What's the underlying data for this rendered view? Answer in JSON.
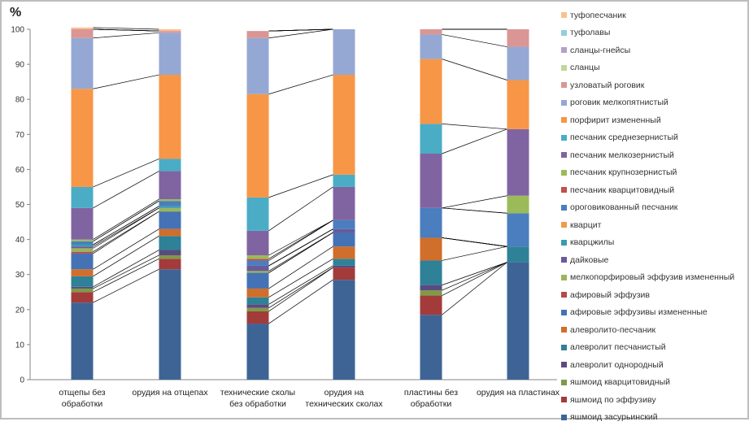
{
  "chart_data": {
    "type": "bar",
    "stacked": true,
    "percent": true,
    "title": "",
    "ylabel": "%",
    "xlabel": "",
    "ylim": [
      0,
      100
    ],
    "yticks": [
      0,
      10,
      20,
      30,
      40,
      50,
      60,
      70,
      80,
      90,
      100
    ],
    "grid": false,
    "legend_position": "right",
    "categories": [
      [
        "отщепы без",
        "обработки"
      ],
      [
        "орудия на отщепах"
      ],
      [
        "технические сколы",
        "без обработки"
      ],
      [
        "орудия на",
        "технических сколах"
      ],
      [
        "пластины без",
        "обработки"
      ],
      [
        "орудия на пластинах"
      ]
    ],
    "series": [
      {
        "name": "яшмоид засурьинский",
        "color": "#3E6496",
        "values": [
          22,
          31.5,
          16,
          28.5,
          18.5,
          33.5
        ]
      },
      {
        "name": "яшмоид по эффузиву",
        "color": "#A33B3B",
        "values": [
          3,
          3,
          3.5,
          3.5,
          5.5,
          0
        ]
      },
      {
        "name": "яшмоид кварцитовидный",
        "color": "#7F9A48",
        "values": [
          1,
          1,
          1,
          0,
          1.5,
          0
        ]
      },
      {
        "name": "алевролит однородный",
        "color": "#5B4A80",
        "values": [
          0.5,
          1.5,
          1,
          0.5,
          1.5,
          0
        ]
      },
      {
        "name": "алевролит песчанистый",
        "color": "#2E8197",
        "values": [
          3,
          4,
          2,
          2,
          7,
          4.5
        ]
      },
      {
        "name": "алевролито-песчаник",
        "color": "#D06E2B",
        "values": [
          2,
          2,
          2.5,
          3.5,
          6.5,
          0
        ]
      },
      {
        "name": "афировые эффузивы измененные",
        "color": "#4472B5",
        "values": [
          4.5,
          5,
          4.5,
          4,
          0,
          0
        ]
      },
      {
        "name": "афировый эффузив",
        "color": "#B44A4A",
        "values": [
          0.5,
          0,
          0,
          0,
          0,
          0
        ]
      },
      {
        "name": "мелкопорфировый эффузив измененный",
        "color": "#9AB55A",
        "values": [
          1,
          1,
          0.5,
          0,
          0,
          0
        ]
      },
      {
        "name": "дайковые",
        "color": "#6A5A9A",
        "values": [
          0.5,
          0,
          1.5,
          1,
          0,
          0
        ]
      },
      {
        "name": "кварцжилы",
        "color": "#3A9AAF",
        "values": [
          0.5,
          0.5,
          0,
          0,
          0,
          0
        ]
      },
      {
        "name": "кварцит",
        "color": "#F09A4A",
        "values": [
          0,
          0,
          0,
          0,
          0,
          0
        ]
      },
      {
        "name": "ороговикованный песчаник",
        "color": "#4A7EBE",
        "values": [
          1,
          1.5,
          1.5,
          2.5,
          8.5,
          9.5
        ]
      },
      {
        "name": "песчаник кварцитовидный",
        "color": "#C0504D",
        "values": [
          0,
          0,
          0.5,
          0,
          0,
          0
        ]
      },
      {
        "name": "песчаник крупнозернистый",
        "color": "#9BBB59",
        "values": [
          0.5,
          0.5,
          1,
          0,
          0,
          5
        ]
      },
      {
        "name": "песчаник мелкозернистый",
        "color": "#8064A2",
        "values": [
          9,
          8,
          7,
          9.5,
          15.5,
          19
        ]
      },
      {
        "name": "песчаник среднезернистый",
        "color": "#4BACC6",
        "values": [
          6,
          3.5,
          9.5,
          3.5,
          8.5,
          0
        ]
      },
      {
        "name": "порфирит  измененный",
        "color": "#F79646",
        "values": [
          28,
          24,
          29.5,
          28.5,
          18.5,
          14
        ]
      },
      {
        "name": "роговик мелкопятнистый",
        "color": "#95A8D4",
        "values": [
          14.5,
          12,
          16,
          13,
          7,
          9.5
        ]
      },
      {
        "name": "узловатый роговик",
        "color": "#D99694",
        "values": [
          2.5,
          0.5,
          2,
          0,
          1.5,
          5
        ]
      },
      {
        "name": "сланцы",
        "color": "#C3D69B",
        "values": [
          0,
          0,
          0,
          0,
          0,
          0
        ]
      },
      {
        "name": "сланцы-гнейсы",
        "color": "#B3A2C7",
        "values": [
          0,
          0,
          0,
          0,
          0,
          0
        ]
      },
      {
        "name": "туфолавы",
        "color": "#93CDDD",
        "values": [
          0,
          0,
          0,
          0,
          0,
          0
        ]
      },
      {
        "name": "туфопесчаник",
        "color": "#FAC090",
        "values": [
          0.5,
          0.5,
          0,
          0,
          0,
          0
        ]
      }
    ],
    "connector_lines": "series boundaries linked between adjacent bar pairs"
  }
}
